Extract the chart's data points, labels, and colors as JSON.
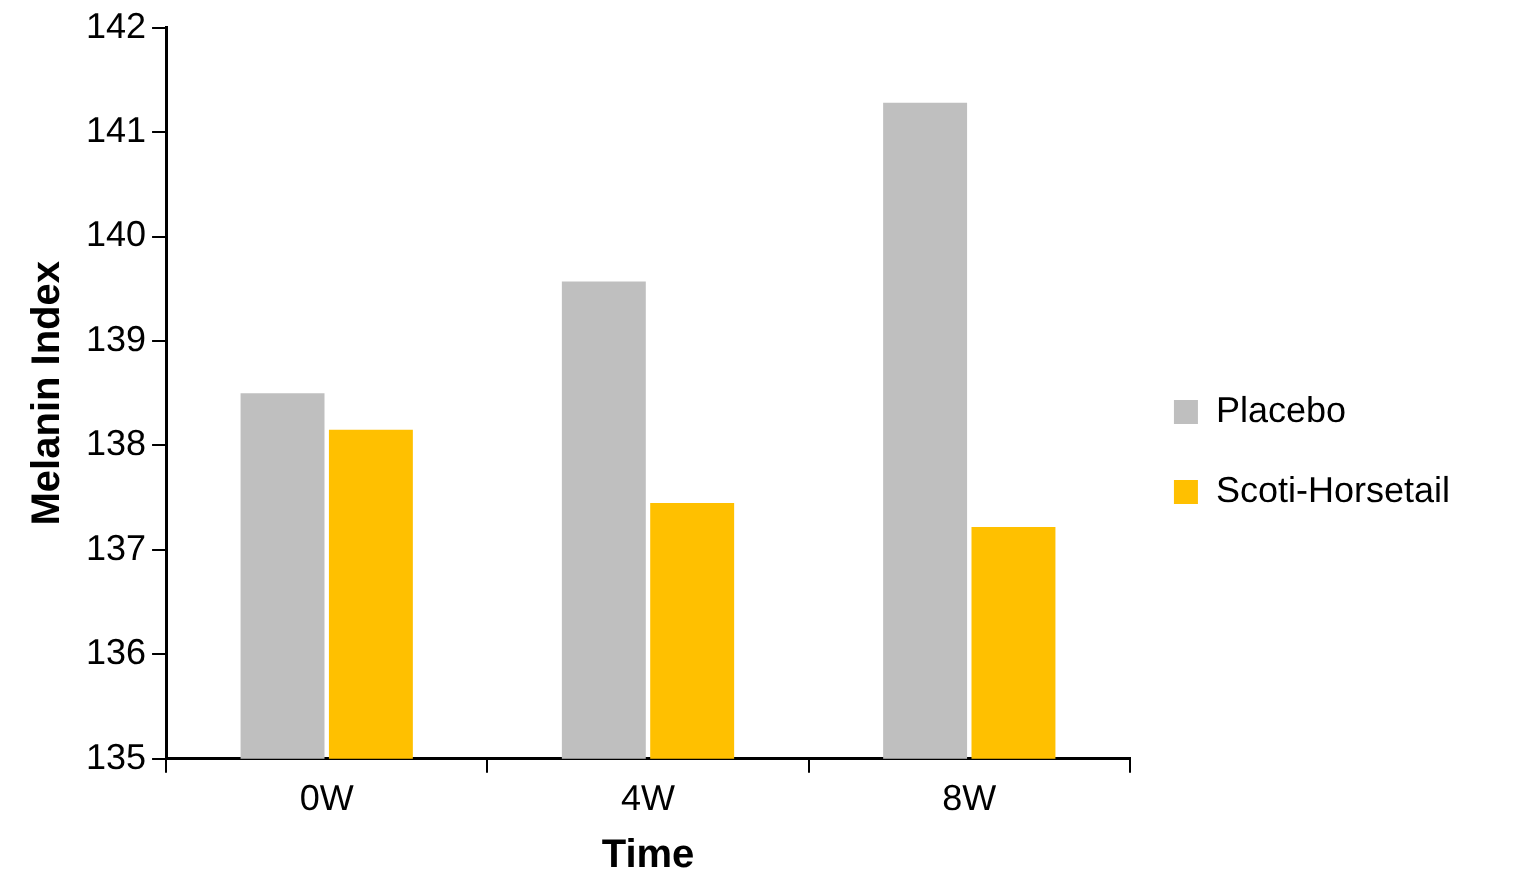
{
  "chart_data": {
    "type": "bar",
    "xlabel": "Time",
    "ylabel": "Melanin Index",
    "categories": [
      "0W",
      "4W",
      "8W"
    ],
    "series": [
      {
        "name": "Placebo",
        "color": "#bfbfbf",
        "values": [
          138.5,
          139.57,
          141.28
        ]
      },
      {
        "name": "Scoti-Horsetail",
        "color": "#ffc000",
        "values": [
          138.15,
          137.45,
          137.22
        ]
      }
    ],
    "ylim": [
      135,
      142
    ],
    "yticks": [
      135,
      136,
      137,
      138,
      139,
      140,
      141,
      142
    ],
    "grid": false,
    "legend": "right"
  }
}
